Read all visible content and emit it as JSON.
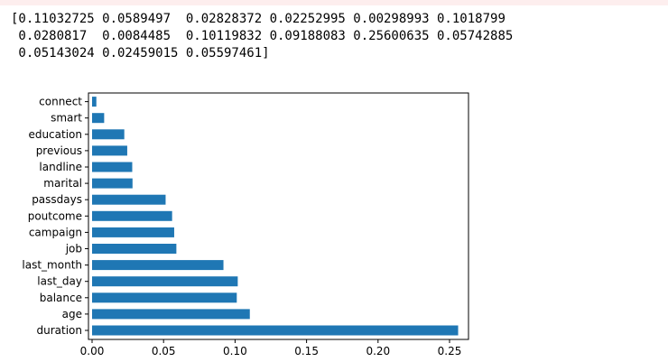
{
  "output": {
    "lines": [
      "[0.11032725 0.0589497  0.02828372 0.02252995 0.00298993 0.1018799",
      " 0.0280817  0.0084485  0.10119832 0.09188083 0.25600635 0.05742885",
      " 0.05143024 0.02459015 0.05597461]"
    ]
  },
  "chart_data": {
    "type": "bar",
    "orientation": "horizontal",
    "categories": [
      "duration",
      "age",
      "balance",
      "last_day",
      "last_month",
      "job",
      "campaign",
      "poutcome",
      "passdays",
      "marital",
      "landline",
      "previous",
      "education",
      "smart",
      "connect"
    ],
    "values": [
      0.25600635,
      0.11032725,
      0.10119832,
      0.1018799,
      0.09188083,
      0.0589497,
      0.05742885,
      0.05597461,
      0.05143024,
      0.02828372,
      0.0280817,
      0.02459015,
      0.02252995,
      0.0084485,
      0.00298993
    ],
    "x_ticks": [
      "0.00",
      "0.05",
      "0.10",
      "0.15",
      "0.20",
      "0.25"
    ],
    "xlim": [
      0,
      0.263
    ],
    "title": "",
    "xlabel": "",
    "ylabel": "",
    "grid": false,
    "bar_color": "#1f77b4"
  }
}
